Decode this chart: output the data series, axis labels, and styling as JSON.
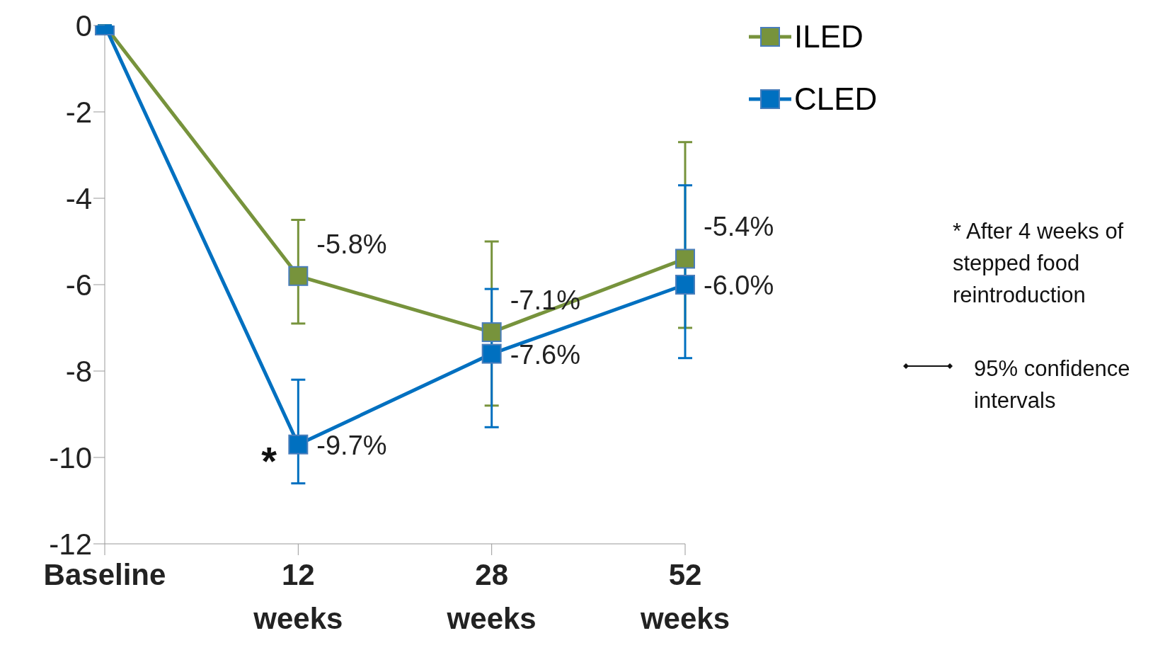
{
  "chart_data": {
    "type": "line",
    "categories": [
      "Baseline",
      "12 weeks",
      "28 weeks",
      "52 weeks"
    ],
    "ylim": [
      -12,
      0
    ],
    "yticks": [
      0,
      -2,
      -4,
      -6,
      -8,
      -10,
      -12
    ],
    "grid": false,
    "legend": "top right",
    "marker": "square",
    "line_style": "solid",
    "series": [
      {
        "name": "ILED",
        "color": "#77933c",
        "values": [
          0,
          -5.8,
          -7.1,
          -5.4
        ],
        "errors": [
          null,
          [
            -6.9,
            -4.5
          ],
          [
            -8.8,
            -5.0
          ],
          [
            -7.0,
            -2.7
          ]
        ],
        "value_labels": [
          null,
          "-5.8%",
          "-7.1%",
          "-5.4%"
        ]
      },
      {
        "name": "CLED",
        "color": "#0070c0",
        "values": [
          0,
          -9.7,
          -7.6,
          -6.0
        ],
        "errors": [
          null,
          [
            -10.6,
            -8.2
          ],
          [
            -9.3,
            -6.1
          ],
          [
            -7.7,
            -3.7
          ]
        ],
        "value_labels": [
          null,
          "-9.7%",
          "-7.6%",
          "-6.0%"
        ]
      }
    ],
    "annotations": [
      {
        "text": "*",
        "x": "12 weeks",
        "y": -9.7
      },
      "* After 4 weeks of stepped food reintroduction",
      "95% confidence intervals"
    ]
  }
}
